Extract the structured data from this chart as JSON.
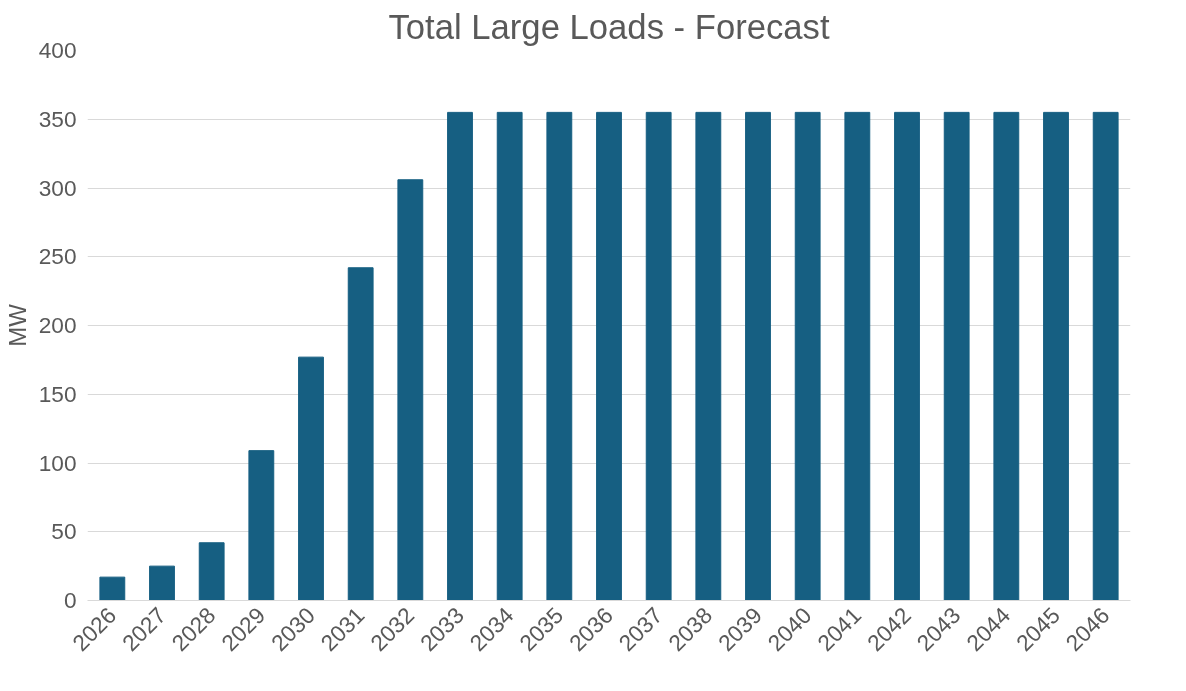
{
  "chart_data": {
    "type": "bar",
    "title": "Total Large Loads - Forecast",
    "ylabel": "MW",
    "categories": [
      "2026",
      "2027",
      "2028",
      "2029",
      "2030",
      "2031",
      "2032",
      "2033",
      "2034",
      "2035",
      "2036",
      "2037",
      "2038",
      "2039",
      "2040",
      "2041",
      "2042",
      "2043",
      "2044",
      "2045",
      "2046"
    ],
    "series": [
      {
        "color": "#165f82",
        "values": [
          17,
          25,
          42,
          109,
          177,
          242,
          306,
          355,
          355,
          355,
          355,
          355,
          355,
          355,
          355,
          355,
          355,
          355,
          355,
          355,
          355
        ]
      }
    ],
    "ylim": [
      0,
      400
    ],
    "yticks": [
      0,
      50,
      100,
      150,
      200,
      250,
      300,
      350,
      400
    ],
    "grid": "y"
  }
}
